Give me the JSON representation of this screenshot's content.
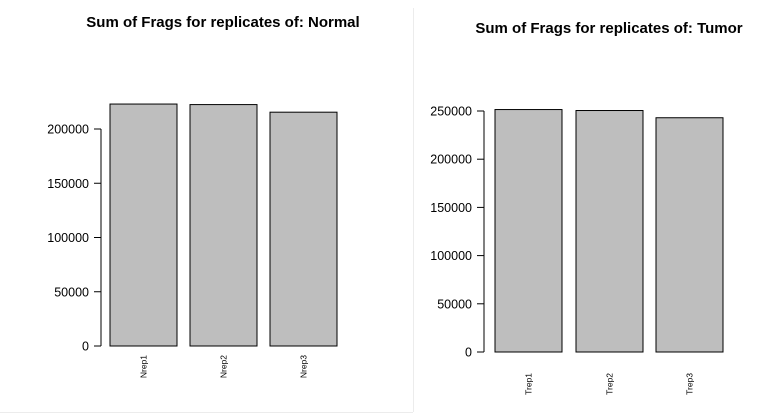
{
  "chart_data": [
    {
      "type": "bar",
      "title": "Sum of Frags for replicates of: Normal",
      "categories": [
        "Nrep1",
        "Nrep2",
        "Nrep3"
      ],
      "values": [
        223000,
        222500,
        215500
      ],
      "ylim": [
        0,
        200000
      ],
      "yticks": [
        0,
        50000,
        100000,
        150000,
        200000
      ],
      "ytick_labels": [
        "0",
        "50000",
        "100000",
        "150000",
        "200000"
      ],
      "bar_color": "#bebebe",
      "grid": false,
      "xlabel": "",
      "ylabel": ""
    },
    {
      "type": "bar",
      "title": "Sum of Frags for replicates of: Tumor",
      "categories": [
        "Trep1",
        "Trep2",
        "Trep3"
      ],
      "values": [
        251500,
        250500,
        243000
      ],
      "ylim": [
        0,
        250000
      ],
      "yticks": [
        0,
        50000,
        100000,
        150000,
        200000,
        250000
      ],
      "ytick_labels": [
        "0",
        "50000",
        "100000",
        "150000",
        "200000",
        "250000"
      ],
      "bar_color": "#bebebe",
      "grid": false,
      "xlabel": "",
      "ylabel": ""
    }
  ]
}
